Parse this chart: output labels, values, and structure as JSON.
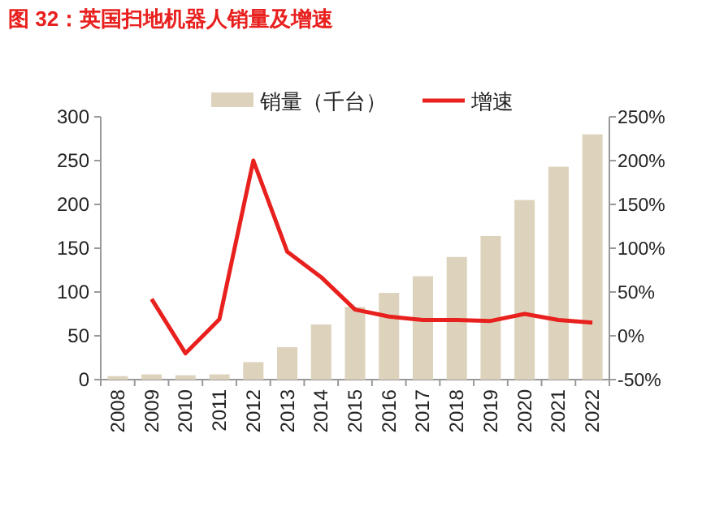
{
  "chart_data": {
    "type": "bar",
    "title": "图 32：英国扫地机器人销量及增速",
    "categories": [
      "2008",
      "2009",
      "2010",
      "2011",
      "2012",
      "2013",
      "2014",
      "2015",
      "2016",
      "2017",
      "2018",
      "2019",
      "2020",
      "2021",
      "2022"
    ],
    "series": [
      {
        "name": "销量（千台）",
        "color": "#ddd3bd",
        "values": [
          4,
          6,
          5,
          6,
          20,
          37,
          63,
          83,
          99,
          118,
          140,
          164,
          205,
          243,
          280
        ]
      },
      {
        "name": "增速",
        "type": "line",
        "axis": "y2",
        "color": "#e8201e",
        "values": [
          null,
          42,
          -20,
          19,
          200,
          96,
          67,
          30,
          22,
          18,
          18,
          17,
          25,
          18,
          15
        ]
      }
    ],
    "ylim": [
      0,
      300
    ],
    "yticks": [
      0,
      50,
      100,
      150,
      200,
      250,
      300
    ],
    "y2lim": [
      -50,
      250
    ],
    "y2ticks": [
      {
        "value": -50,
        "label": "-50%"
      },
      {
        "value": 0,
        "label": "0%"
      },
      {
        "value": 50,
        "label": "50%"
      },
      {
        "value": 100,
        "label": "100%"
      },
      {
        "value": 150,
        "label": "150%"
      },
      {
        "value": 200,
        "label": "200%"
      },
      {
        "value": 250,
        "label": "250%"
      }
    ],
    "legend": "top",
    "grid": false
  }
}
